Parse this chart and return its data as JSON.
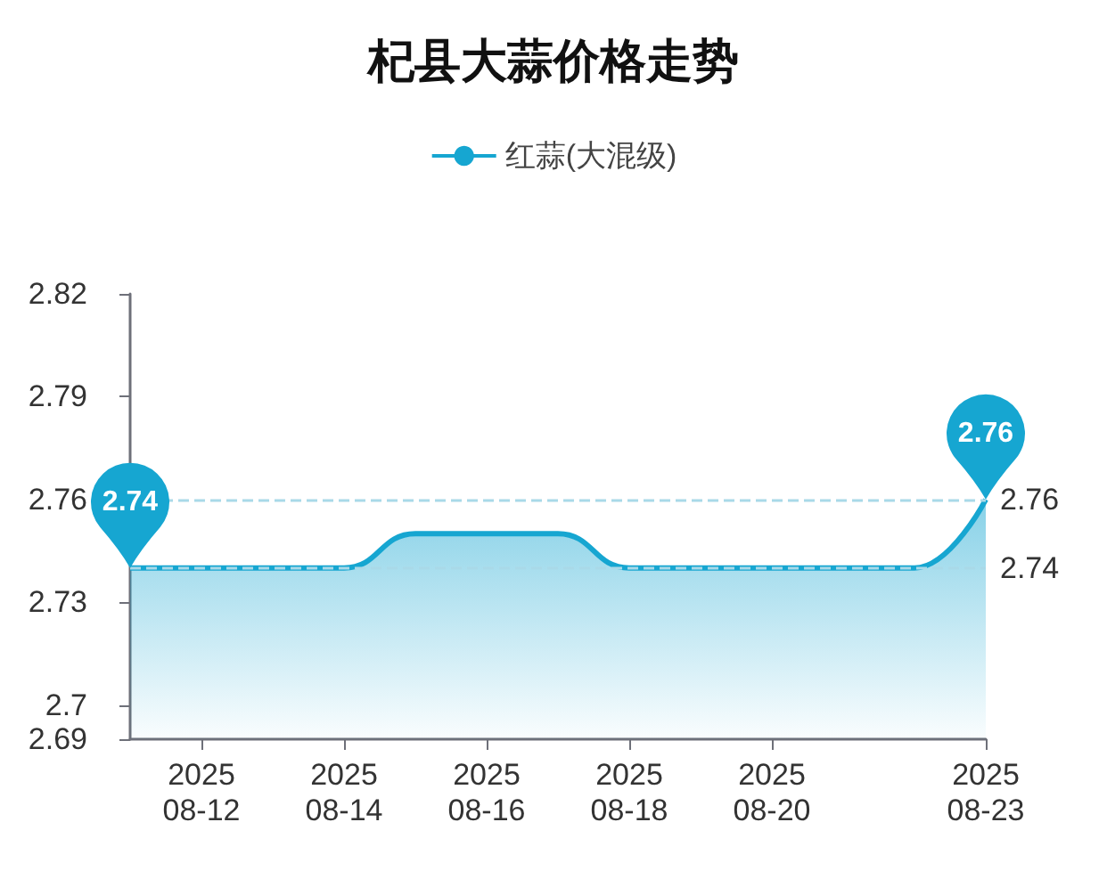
{
  "chart_data": {
    "type": "area",
    "title": "杞县大蒜价格走势",
    "x": [
      "2025-08-11",
      "2025-08-12",
      "2025-08-13",
      "2025-08-14",
      "2025-08-15",
      "2025-08-16",
      "2025-08-17",
      "2025-08-18",
      "2025-08-19",
      "2025-08-20",
      "2025-08-21",
      "2025-08-22",
      "2025-08-23"
    ],
    "series": [
      {
        "name": "红蒜(大混级)",
        "color": "#16a6d1",
        "values": [
          2.74,
          2.74,
          2.74,
          2.74,
          2.75,
          2.75,
          2.75,
          2.74,
          2.74,
          2.74,
          2.74,
          2.74,
          2.76
        ]
      }
    ],
    "xlim": [
      "2025-08-11",
      "2025-08-23"
    ],
    "xticks": [
      {
        "value": "2025-08-12",
        "label": "2025\n08-12"
      },
      {
        "value": "2025-08-14",
        "label": "2025\n08-14"
      },
      {
        "value": "2025-08-16",
        "label": "2025\n08-16"
      },
      {
        "value": "2025-08-18",
        "label": "2025\n08-18"
      },
      {
        "value": "2025-08-20",
        "label": "2025\n08-20"
      },
      {
        "value": "2025-08-23",
        "label": "2025\n08-23"
      }
    ],
    "ylim": [
      2.69,
      2.82
    ],
    "yticks": [
      2.69,
      2.7,
      2.73,
      2.76,
      2.79,
      2.82
    ],
    "ref_lines": [
      {
        "axis": "y",
        "value": 2.76,
        "label": "2.76",
        "color": "#a9d9e8",
        "line_style": "dashed"
      },
      {
        "axis": "y",
        "value": 2.74,
        "label": "2.74",
        "color": "#a9d9e8",
        "line_style": "dashed"
      }
    ],
    "annotations": [
      {
        "text": "2.74",
        "x": "2025-08-11",
        "y": 2.74
      },
      {
        "text": "2.76",
        "x": "2025-08-23",
        "y": 2.76
      }
    ],
    "legend": "top",
    "grid": false
  }
}
